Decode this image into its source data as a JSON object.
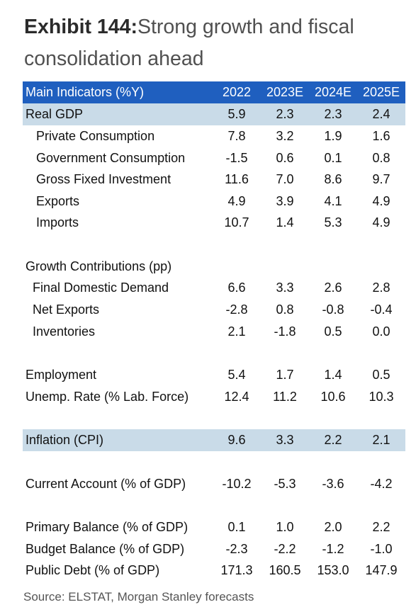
{
  "exhibit": {
    "label": "Exhibit 144:",
    "title_line1": "Strong growth and fiscal",
    "title_line2": "consolidation ahead"
  },
  "table": {
    "header": {
      "label": "Main Indicators (%Y)",
      "y2022": "2022",
      "y2023": "2023E",
      "y2024": "2024E",
      "y2025": "2025E"
    },
    "rows": [
      {
        "label": "Real GDP",
        "v": [
          "5.9",
          "2.3",
          "2.3",
          "2.4"
        ]
      },
      {
        "label": "Private Consumption",
        "v": [
          "7.8",
          "3.2",
          "1.9",
          "1.6"
        ]
      },
      {
        "label": "Government Consumption",
        "v": [
          "-1.5",
          "0.6",
          "0.1",
          "0.8"
        ]
      },
      {
        "label": "Gross Fixed Investment",
        "v": [
          "11.6",
          "7.0",
          "8.6",
          "9.7"
        ]
      },
      {
        "label": "Exports",
        "v": [
          "4.9",
          "3.9",
          "4.1",
          "4.9"
        ]
      },
      {
        "label": "Imports",
        "v": [
          "10.7",
          "1.4",
          "5.3",
          "4.9"
        ]
      },
      {
        "label": "Growth Contributions (pp)",
        "v": [
          "",
          "",
          "",
          ""
        ]
      },
      {
        "label": "Final Domestic Demand",
        "v": [
          "6.6",
          "3.3",
          "2.6",
          "2.8"
        ]
      },
      {
        "label": "Net Exports",
        "v": [
          "-2.8",
          "0.8",
          "-0.8",
          "-0.4"
        ]
      },
      {
        "label": "Inventories",
        "v": [
          "2.1",
          "-1.8",
          "0.5",
          "0.0"
        ]
      },
      {
        "label": "Employment",
        "v": [
          "5.4",
          "1.7",
          "1.4",
          "0.5"
        ]
      },
      {
        "label": "Unemp. Rate (% Lab. Force)",
        "v": [
          "12.4",
          "11.2",
          "10.6",
          "10.3"
        ]
      },
      {
        "label": "Inflation (CPI)",
        "v": [
          "9.6",
          "3.3",
          "2.2",
          "2.1"
        ]
      },
      {
        "label": "Current Account (% of GDP)",
        "v": [
          "-10.2",
          "-5.3",
          "-3.6",
          "-4.2"
        ]
      },
      {
        "label": "Primary Balance (% of GDP)",
        "v": [
          "0.1",
          "1.0",
          "2.0",
          "2.2"
        ]
      },
      {
        "label": "Budget Balance (% of GDP)",
        "v": [
          "-2.3",
          "-2.2",
          "-1.2",
          "-1.0"
        ]
      },
      {
        "label": "Public Debt (% of GDP)",
        "v": [
          "171.3",
          "160.5",
          "153.0",
          "147.9"
        ]
      }
    ]
  },
  "source": "Source: ELSTAT, Morgan Stanley forecasts"
}
